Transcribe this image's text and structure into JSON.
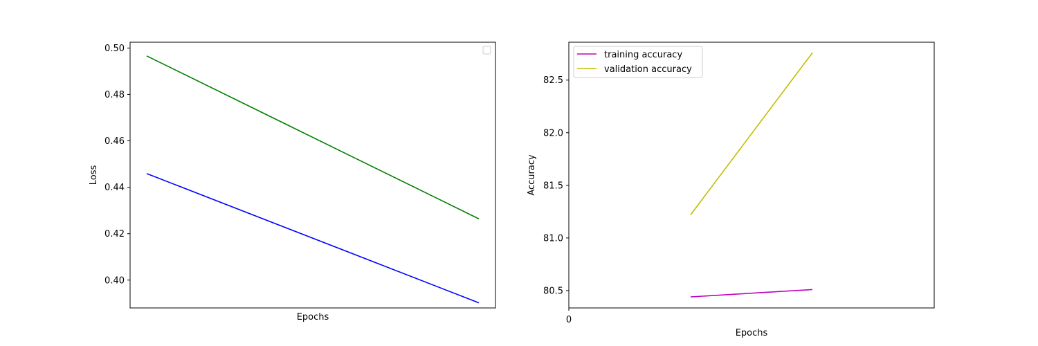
{
  "chart_data": [
    {
      "type": "line",
      "xlabel": "Epochs",
      "ylabel": "Loss",
      "x": [
        0,
        1
      ],
      "xlim": [
        -0.05,
        1.05
      ],
      "xticks": [],
      "ylim": [
        0.388,
        0.5025
      ],
      "yticks": [
        0.4,
        0.42,
        0.44,
        0.46,
        0.48,
        0.5
      ],
      "ytick_labels": [
        "0.40",
        "0.42",
        "0.44",
        "0.46",
        "0.48",
        "0.50"
      ],
      "grid": false,
      "legend": {
        "location": "upper right",
        "entries": []
      },
      "series": [
        {
          "color": "#0000ff",
          "values": [
            0.4459,
            0.3902
          ]
        },
        {
          "color": "#008000",
          "values": [
            0.4966,
            0.4264
          ]
        }
      ]
    },
    {
      "type": "line",
      "xlabel": "Epochs",
      "ylabel": "Accuracy",
      "x": [
        1,
        2
      ],
      "xlim": [
        0,
        3
      ],
      "xticks": [
        0
      ],
      "xtick_labels": [
        "0"
      ],
      "ylim": [
        80.335,
        82.86
      ],
      "yticks": [
        80.5,
        81.0,
        81.5,
        82.0,
        82.5
      ],
      "ytick_labels": [
        "80.5",
        "81.0",
        "81.5",
        "82.0",
        "82.5"
      ],
      "grid": false,
      "legend": {
        "location": "upper left",
        "entries": [
          "training accuracy",
          "validation accuracy"
        ]
      },
      "series": [
        {
          "name": "training accuracy",
          "color": "#bf00bf",
          "values": [
            80.44,
            80.51
          ]
        },
        {
          "name": "validation accuracy",
          "color": "#bfbf00",
          "values": [
            81.22,
            82.76
          ]
        }
      ]
    }
  ]
}
